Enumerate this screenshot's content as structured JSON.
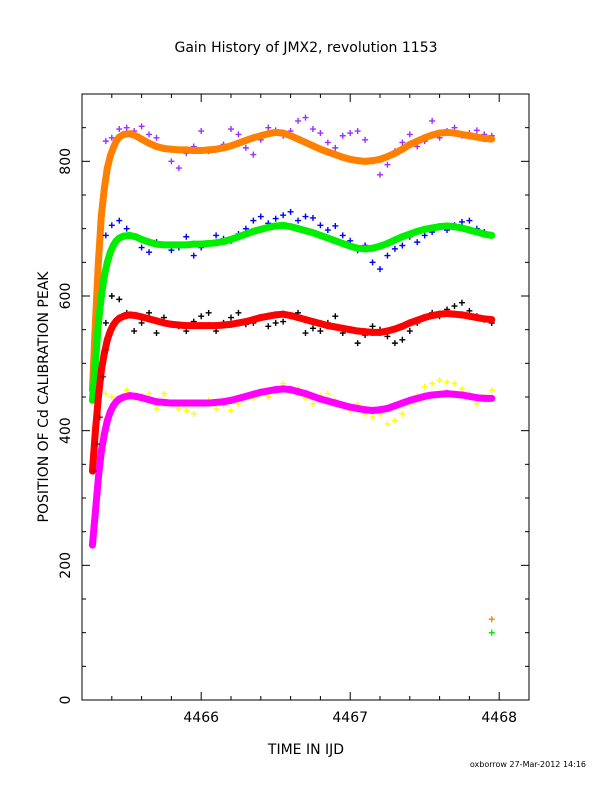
{
  "chart_data": {
    "type": "scatter",
    "title": "Gain History of JMX2, revolution 1153",
    "xlabel": "TIME IN IJD",
    "ylabel": "POSITION OF Cd CALIBRATION PEAK",
    "xlim": [
      4465.2,
      4468.2
    ],
    "ylim": [
      0,
      900
    ],
    "xticks": [
      "4466",
      "4467",
      "4468"
    ],
    "yticks": [
      "0",
      "200",
      "400",
      "600",
      "800"
    ],
    "grid": false,
    "footer": "oxborrow 27-Mar-2012 14:16",
    "colors": {
      "series_purple": "#9b30ff",
      "series_orange": "#ff8000",
      "series_blue": "#0000ff",
      "series_green": "#00ee00",
      "series_black": "#000000",
      "series_red": "#ff0000",
      "series_yellow": "#ffff00",
      "series_magenta": "#ff00ff",
      "series_darkred": "#bb0000"
    },
    "series": [
      {
        "color": "series_purple",
        "marker": "cross",
        "x": [
          4465.36,
          4465.4,
          4465.45,
          4465.5,
          4465.55,
          4465.6,
          4465.65,
          4465.7,
          4465.75,
          4465.8,
          4465.85,
          4465.9,
          4465.95,
          4466.0,
          4466.05,
          4466.1,
          4466.15,
          4466.2,
          4466.25,
          4466.3,
          4466.35,
          4466.4,
          4466.45,
          4466.5,
          4466.55,
          4466.6,
          4466.65,
          4466.7,
          4466.75,
          4466.8,
          4466.85,
          4466.9,
          4466.95,
          4467.0,
          4467.05,
          4467.1,
          4467.15,
          4467.2,
          4467.25,
          4467.3,
          4467.35,
          4467.4,
          4467.45,
          4467.5,
          4467.55,
          4467.6,
          4467.65,
          4467.7,
          4467.75,
          4467.8,
          4467.85,
          4467.9,
          4467.95
        ],
        "y": [
          830,
          835,
          848,
          850,
          845,
          852,
          840,
          835,
          820,
          800,
          790,
          812,
          822,
          845,
          815,
          818,
          825,
          848,
          840,
          820,
          810,
          832,
          850,
          846,
          838,
          845,
          860,
          865,
          848,
          842,
          828,
          820,
          838,
          842,
          845,
          832,
          800,
          780,
          795,
          815,
          828,
          840,
          822,
          830,
          860,
          835,
          845,
          850,
          838,
          842,
          846,
          840,
          838
        ]
      },
      {
        "color": "series_orange",
        "marker": "cross",
        "x": [
          4465.27,
          4465.29,
          4465.31,
          4465.33,
          4465.35,
          4465.37,
          4465.39,
          4465.41,
          4465.43,
          4465.45,
          4465.48,
          4465.52,
          4465.56,
          4465.6,
          4465.65,
          4465.7,
          4465.75,
          4465.8,
          4465.85,
          4465.9,
          4465.95,
          4466.0,
          4466.05,
          4466.1,
          4466.15,
          4466.2,
          4466.25,
          4466.3,
          4466.35,
          4466.4,
          4466.45,
          4466.5,
          4466.55,
          4466.6,
          4466.65,
          4466.7,
          4466.75,
          4466.8,
          4466.85,
          4466.9,
          4466.95,
          4467.0,
          4467.05,
          4467.1,
          4467.15,
          4467.2,
          4467.25,
          4467.3,
          4467.35,
          4467.4,
          4467.45,
          4467.5,
          4467.55,
          4467.6,
          4467.65,
          4467.7,
          4467.75,
          4467.8,
          4467.85,
          4467.9,
          4467.95
        ],
        "y": [
          460,
          560,
          650,
          720,
          760,
          790,
          808,
          820,
          830,
          836,
          840,
          841,
          838,
          833,
          827,
          822,
          819,
          818,
          817,
          817,
          816,
          816,
          817,
          818,
          820,
          823,
          827,
          831,
          835,
          838,
          841,
          843,
          842,
          838,
          833,
          828,
          823,
          818,
          814,
          810,
          806,
          803,
          801,
          800,
          801,
          803,
          807,
          812,
          818,
          825,
          830,
          835,
          839,
          842,
          843,
          842,
          840,
          838,
          836,
          834,
          833
        ]
      },
      {
        "color": "series_blue",
        "marker": "cross",
        "x": [
          4465.36,
          4465.4,
          4465.45,
          4465.5,
          4465.55,
          4465.6,
          4465.65,
          4465.7,
          4465.75,
          4465.8,
          4465.85,
          4465.9,
          4465.95,
          4466.0,
          4466.05,
          4466.1,
          4466.15,
          4466.2,
          4466.25,
          4466.3,
          4466.35,
          4466.4,
          4466.45,
          4466.5,
          4466.55,
          4466.6,
          4466.65,
          4466.7,
          4466.75,
          4466.8,
          4466.85,
          4466.9,
          4466.95,
          4467.0,
          4467.05,
          4467.1,
          4467.15,
          4467.2,
          4467.25,
          4467.3,
          4467.35,
          4467.4,
          4467.45,
          4467.5,
          4467.55,
          4467.6,
          4467.65,
          4467.7,
          4467.75,
          4467.8,
          4467.85,
          4467.9,
          4467.95
        ],
        "y": [
          690,
          705,
          712,
          700,
          688,
          672,
          665,
          680,
          676,
          668,
          672,
          688,
          660,
          672,
          678,
          690,
          685,
          682,
          692,
          700,
          712,
          718,
          708,
          715,
          720,
          725,
          712,
          718,
          716,
          705,
          698,
          704,
          690,
          682,
          668,
          675,
          650,
          640,
          660,
          670,
          675,
          688,
          680,
          690,
          695,
          702,
          698,
          705,
          710,
          712,
          700,
          695,
          690
        ]
      },
      {
        "color": "series_green",
        "marker": "cross",
        "x": [
          4465.27,
          4465.29,
          4465.31,
          4465.33,
          4465.35,
          4465.37,
          4465.39,
          4465.41,
          4465.43,
          4465.45,
          4465.48,
          4465.52,
          4465.56,
          4465.6,
          4465.65,
          4465.7,
          4465.75,
          4465.8,
          4465.85,
          4465.9,
          4465.95,
          4466.0,
          4466.05,
          4466.1,
          4466.15,
          4466.2,
          4466.25,
          4466.3,
          4466.35,
          4466.4,
          4466.45,
          4466.5,
          4466.55,
          4466.6,
          4466.65,
          4466.7,
          4466.75,
          4466.8,
          4466.85,
          4466.9,
          4466.95,
          4467.0,
          4467.05,
          4467.1,
          4467.15,
          4467.2,
          4467.25,
          4467.3,
          4467.35,
          4467.4,
          4467.45,
          4467.5,
          4467.55,
          4467.6,
          4467.65,
          4467.7,
          4467.75,
          4467.8,
          4467.85,
          4467.9,
          4467.95
        ],
        "y": [
          445,
          500,
          560,
          600,
          630,
          650,
          665,
          675,
          682,
          686,
          689,
          690,
          688,
          684,
          680,
          677,
          676,
          676,
          676,
          676,
          677,
          677,
          678,
          679,
          681,
          684,
          688,
          692,
          696,
          699,
          702,
          704,
          705,
          703,
          700,
          697,
          694,
          690,
          686,
          682,
          678,
          674,
          671,
          670,
          671,
          674,
          678,
          683,
          688,
          692,
          696,
          699,
          701,
          703,
          704,
          703,
          701,
          698,
          695,
          692,
          690
        ]
      },
      {
        "color": "series_black",
        "marker": "cross",
        "x": [
          4465.36,
          4465.4,
          4465.45,
          4465.5,
          4465.55,
          4465.6,
          4465.65,
          4465.7,
          4465.75,
          4465.8,
          4465.85,
          4465.9,
          4465.95,
          4466.0,
          4466.05,
          4466.1,
          4466.15,
          4466.2,
          4466.25,
          4466.3,
          4466.35,
          4466.4,
          4466.45,
          4466.5,
          4466.55,
          4466.6,
          4466.65,
          4466.7,
          4466.75,
          4466.8,
          4466.85,
          4466.9,
          4466.95,
          4467.0,
          4467.05,
          4467.1,
          4467.15,
          4467.2,
          4467.25,
          4467.3,
          4467.35,
          4467.4,
          4467.45,
          4467.5,
          4467.55,
          4467.6,
          4467.65,
          4467.7,
          4467.75,
          4467.8,
          4467.85,
          4467.9,
          4467.95
        ],
        "y": [
          560,
          600,
          595,
          575,
          548,
          560,
          575,
          545,
          568,
          558,
          555,
          548,
          562,
          570,
          575,
          548,
          560,
          568,
          575,
          558,
          560,
          568,
          555,
          560,
          562,
          570,
          575,
          545,
          552,
          548,
          560,
          570,
          545,
          550,
          530,
          542,
          555,
          550,
          540,
          530,
          535,
          548,
          560,
          568,
          575,
          570,
          580,
          585,
          590,
          578,
          570,
          565,
          560
        ]
      },
      {
        "color": "series_red",
        "marker": "cross",
        "x": [
          4465.27,
          4465.29,
          4465.31,
          4465.33,
          4465.35,
          4465.37,
          4465.39,
          4465.41,
          4465.43,
          4465.45,
          4465.48,
          4465.52,
          4465.56,
          4465.6,
          4465.65,
          4465.7,
          4465.75,
          4465.8,
          4465.85,
          4465.9,
          4465.95,
          4466.0,
          4466.05,
          4466.1,
          4466.15,
          4466.2,
          4466.25,
          4466.3,
          4466.35,
          4466.4,
          4466.45,
          4466.5,
          4466.55,
          4466.6,
          4466.65,
          4466.7,
          4466.75,
          4466.8,
          4466.85,
          4466.9,
          4466.95,
          4467.0,
          4467.05,
          4467.1,
          4467.15,
          4467.2,
          4467.25,
          4467.3,
          4467.35,
          4467.4,
          4467.45,
          4467.5,
          4467.55,
          4467.6,
          4467.65,
          4467.7,
          4467.75,
          4467.8,
          4467.85,
          4467.9,
          4467.95
        ],
        "y": [
          340,
          400,
          450,
          490,
          515,
          535,
          548,
          557,
          563,
          567,
          570,
          572,
          571,
          569,
          566,
          563,
          560,
          558,
          557,
          556,
          556,
          556,
          556,
          556,
          557,
          558,
          560,
          562,
          565,
          568,
          570,
          572,
          573,
          571,
          568,
          565,
          562,
          559,
          556,
          554,
          552,
          550,
          548,
          547,
          546,
          546,
          548,
          551,
          555,
          560,
          564,
          568,
          571,
          573,
          574,
          573,
          572,
          570,
          568,
          566,
          565
        ]
      },
      {
        "color": "series_yellow",
        "marker": "cross",
        "x": [
          4465.36,
          4465.4,
          4465.45,
          4465.5,
          4465.55,
          4465.6,
          4465.65,
          4465.7,
          4465.75,
          4465.8,
          4465.85,
          4465.9,
          4465.95,
          4466.0,
          4466.05,
          4466.1,
          4466.15,
          4466.2,
          4466.25,
          4466.3,
          4466.35,
          4466.4,
          4466.45,
          4466.5,
          4466.55,
          4466.6,
          4466.65,
          4466.7,
          4466.75,
          4466.8,
          4466.85,
          4466.9,
          4466.95,
          4467.0,
          4467.05,
          4467.1,
          4467.15,
          4467.2,
          4467.25,
          4467.3,
          4467.35,
          4467.4,
          4467.45,
          4467.5,
          4467.55,
          4467.6,
          4467.65,
          4467.7,
          4467.75,
          4467.8,
          4467.85,
          4467.9,
          4467.95
        ],
        "y": [
          455,
          450,
          445,
          460,
          448,
          452,
          455,
          432,
          455,
          440,
          432,
          430,
          425,
          440,
          445,
          432,
          438,
          430,
          440,
          452,
          448,
          455,
          450,
          458,
          470,
          460,
          462,
          448,
          440,
          452,
          455,
          445,
          438,
          430,
          440,
          425,
          420,
          425,
          410,
          415,
          425,
          440,
          452,
          465,
          470,
          475,
          472,
          470,
          462,
          455,
          440,
          450,
          460
        ]
      },
      {
        "color": "series_magenta",
        "marker": "cross",
        "x": [
          4465.27,
          4465.29,
          4465.31,
          4465.33,
          4465.35,
          4465.37,
          4465.39,
          4465.41,
          4465.43,
          4465.45,
          4465.48,
          4465.52,
          4465.56,
          4465.6,
          4465.65,
          4465.7,
          4465.75,
          4465.8,
          4465.85,
          4465.9,
          4465.95,
          4466.0,
          4466.05,
          4466.1,
          4466.15,
          4466.2,
          4466.25,
          4466.3,
          4466.35,
          4466.4,
          4466.45,
          4466.5,
          4466.55,
          4466.6,
          4466.65,
          4466.7,
          4466.75,
          4466.8,
          4466.85,
          4466.9,
          4466.95,
          4467.0,
          4467.05,
          4467.1,
          4467.15,
          4467.2,
          4467.25,
          4467.3,
          4467.35,
          4467.4,
          4467.45,
          4467.5,
          4467.55,
          4467.6,
          4467.65,
          4467.7,
          4467.75,
          4467.8,
          4467.85,
          4467.9,
          4467.95
        ],
        "y": [
          230,
          280,
          330,
          370,
          395,
          415,
          428,
          437,
          443,
          447,
          450,
          452,
          451,
          449,
          446,
          443,
          442,
          441,
          441,
          441,
          441,
          441,
          441,
          442,
          443,
          445,
          448,
          451,
          454,
          457,
          459,
          461,
          462,
          461,
          458,
          455,
          451,
          447,
          444,
          441,
          438,
          435,
          433,
          431,
          430,
          431,
          433,
          437,
          441,
          445,
          448,
          451,
          453,
          454,
          455,
          454,
          453,
          451,
          449,
          448,
          448
        ]
      },
      {
        "color": "series_darkred",
        "marker": "cross",
        "x": [
          4465.28,
          4465.3,
          4465.32,
          4465.34,
          4465.36
        ],
        "y": [
          340,
          380,
          420,
          480,
          520
        ]
      },
      {
        "color": "series_orange",
        "marker": "cross",
        "x": [
          4467.95
        ],
        "y": [
          120
        ]
      },
      {
        "color": "series_green",
        "marker": "cross",
        "x": [
          4467.95
        ],
        "y": [
          100
        ]
      }
    ]
  }
}
